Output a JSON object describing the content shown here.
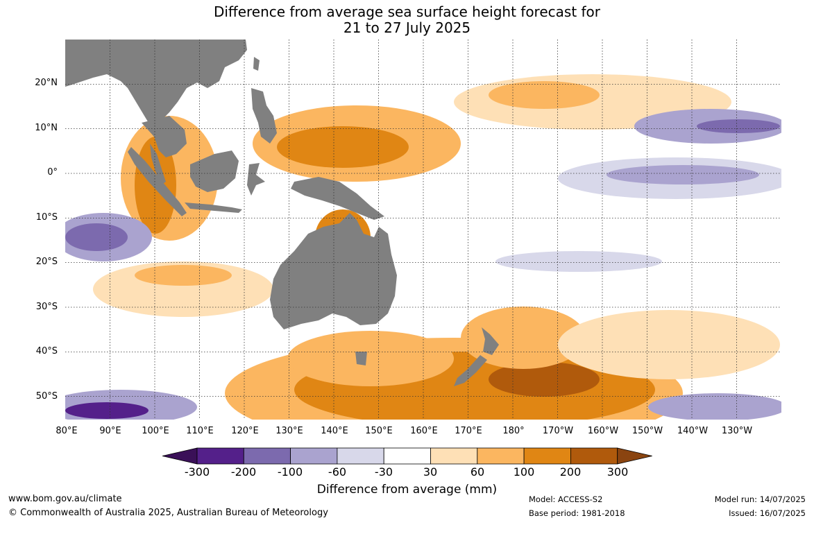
{
  "title_line1": "Difference from average sea surface height forecast for",
  "title_line2": "21 to 27 July 2025",
  "lat_labels": [
    "20°N",
    "10°N",
    "0°",
    "10°S",
    "20°S",
    "30°S",
    "40°S",
    "50°S"
  ],
  "lon_labels": [
    "80°E",
    "90°E",
    "100°E",
    "110°E",
    "120°E",
    "130°E",
    "140°E",
    "150°E",
    "160°E",
    "170°E",
    "180°",
    "170°W",
    "160°W",
    "150°W",
    "140°W",
    "130°W"
  ],
  "colorbar": {
    "title": "Difference from average (mm)",
    "ticks": [
      "-300",
      "-200",
      "-100",
      "-60",
      "-30",
      "30",
      "60",
      "100",
      "200",
      "300"
    ],
    "colors": [
      "#3a1058",
      "#54208a",
      "#7c6aae",
      "#aaa3cf",
      "#d8d8ea",
      "#ffffff",
      "#fee0b6",
      "#fbb660",
      "#e08614",
      "#b05a0c",
      "#8a4410"
    ]
  },
  "land_color": "#808080",
  "footer": {
    "website": "www.bom.gov.au/climate",
    "copyright": "© Commonwealth of Australia 2025, Australian Bureau of Meteorology",
    "model": "Model: ACCESS-S2",
    "base_period": "Base period: 1981-2018",
    "model_run": "Model run: 14/07/2025",
    "issued": "Issued: 16/07/2025"
  }
}
